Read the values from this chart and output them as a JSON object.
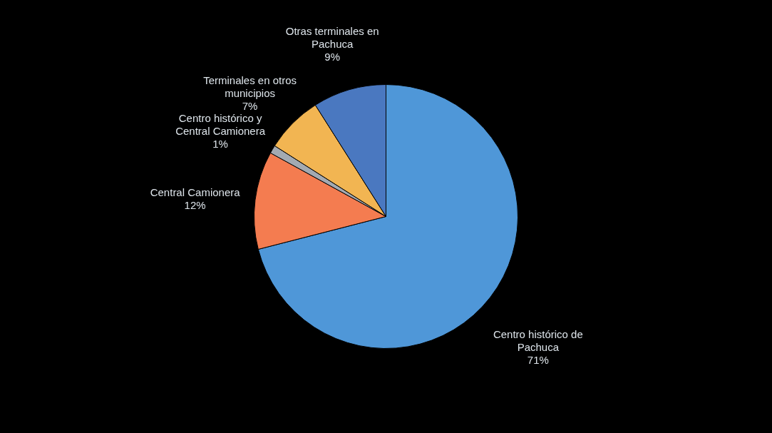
{
  "chart_data": {
    "type": "pie",
    "categories": [
      "Centro  histórico de Pachuca",
      "Central Camionera",
      "Centro  histórico y Central Camionera",
      "Terminales en otros municipios",
      "Otras terminales en Pachuca"
    ],
    "values": [
      71,
      12,
      1,
      7,
      9
    ],
    "value_labels": [
      "71%",
      "12%",
      "1%",
      "7%",
      "9%"
    ],
    "colors": [
      "#4f97d8",
      "#f47c50",
      "#a3aab2",
      "#f2b552",
      "#4a78c0"
    ],
    "legend": false
  }
}
